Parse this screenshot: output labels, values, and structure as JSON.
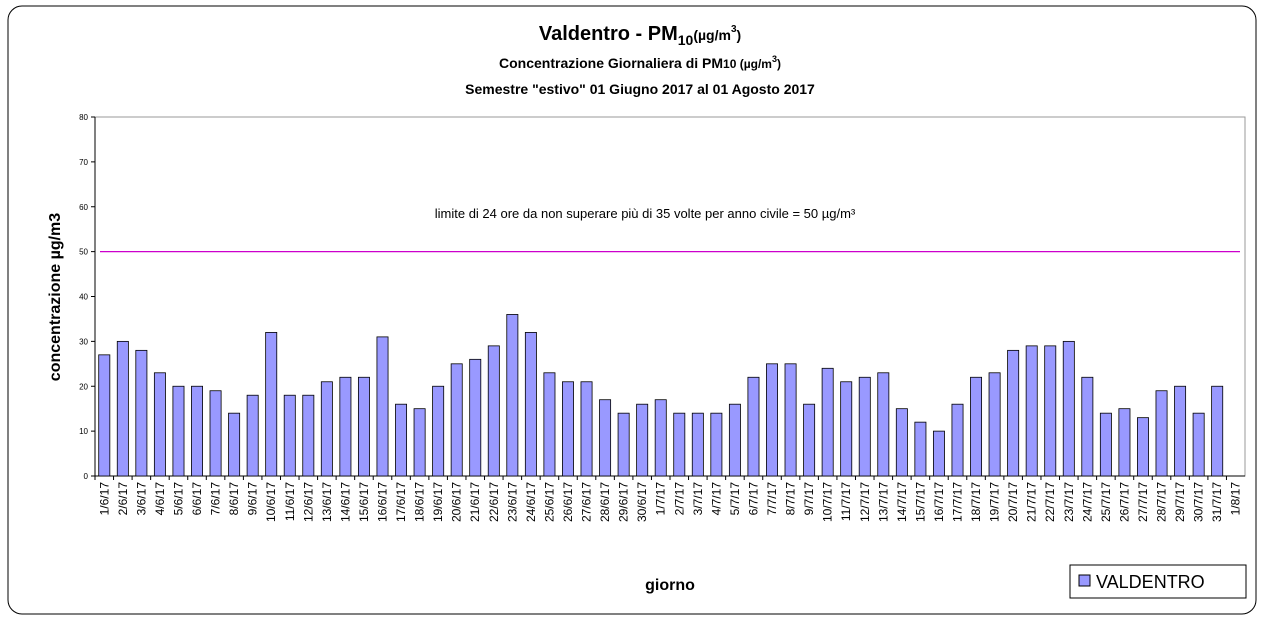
{
  "chart_data": {
    "type": "bar",
    "title_parts": [
      "Valdentro - PM",
      "10",
      "(µg/m",
      "3",
      ")"
    ],
    "subtitle_parts": [
      "Concentrazione Giornaliera di PM",
      "10 (µg/m",
      "3",
      ")"
    ],
    "subtitle2": "Semestre \"estivo\" 01 Giugno 2017 al 01 Agosto 2017",
    "y_label": "concentrazione µg/m3",
    "x_label": "giorno",
    "annotation": "limite di 24 ore da non superare più di 35 volte per anno civile = 50 µg/m³",
    "reference_line": {
      "value": 50,
      "color": "#cc00cc"
    },
    "categories": [
      "1/6/17",
      "2/6/17",
      "3/6/17",
      "4/6/17",
      "5/6/17",
      "6/6/17",
      "7/6/17",
      "8/6/17",
      "9/6/17",
      "10/6/17",
      "11/6/17",
      "12/6/17",
      "13/6/17",
      "14/6/17",
      "15/6/17",
      "16/6/17",
      "17/6/17",
      "18/6/17",
      "19/6/17",
      "20/6/17",
      "21/6/17",
      "22/6/17",
      "23/6/17",
      "24/6/17",
      "25/6/17",
      "26/6/17",
      "27/6/17",
      "28/6/17",
      "29/6/17",
      "30/6/17",
      "1/7/17",
      "2/7/17",
      "3/7/17",
      "4/7/17",
      "5/7/17",
      "6/7/17",
      "7/7/17",
      "8/7/17",
      "9/7/17",
      "10/7/17",
      "11/7/17",
      "12/7/17",
      "13/7/17",
      "14/7/17",
      "15/7/17",
      "16/7/17",
      "17/7/17",
      "18/7/17",
      "19/7/17",
      "20/7/17",
      "21/7/17",
      "22/7/17",
      "23/7/17",
      "24/7/17",
      "25/7/17",
      "26/7/17",
      "27/7/17",
      "28/7/17",
      "29/7/17",
      "30/7/17",
      "31/7/17",
      "1/8/17"
    ],
    "series": [
      {
        "name": "VALDENTRO",
        "color": "#9999ff",
        "values": [
          27,
          30,
          28,
          23,
          20,
          20,
          19,
          14,
          18,
          32,
          18,
          18,
          21,
          22,
          22,
          31,
          16,
          15,
          20,
          25,
          26,
          29,
          36,
          32,
          23,
          21,
          21,
          17,
          14,
          16,
          17,
          14,
          14,
          14,
          16,
          22,
          25,
          25,
          16,
          24,
          21,
          22,
          23,
          15,
          12,
          10,
          16,
          22,
          23,
          28,
          29,
          29,
          30,
          22,
          14,
          15,
          13,
          19,
          20,
          14,
          20,
          null
        ]
      }
    ],
    "ylim": [
      0,
      80
    ],
    "yticks": [
      0,
      10,
      20,
      30,
      40,
      50,
      60,
      70,
      80
    ],
    "grid": false,
    "legend": "bottom-right"
  }
}
